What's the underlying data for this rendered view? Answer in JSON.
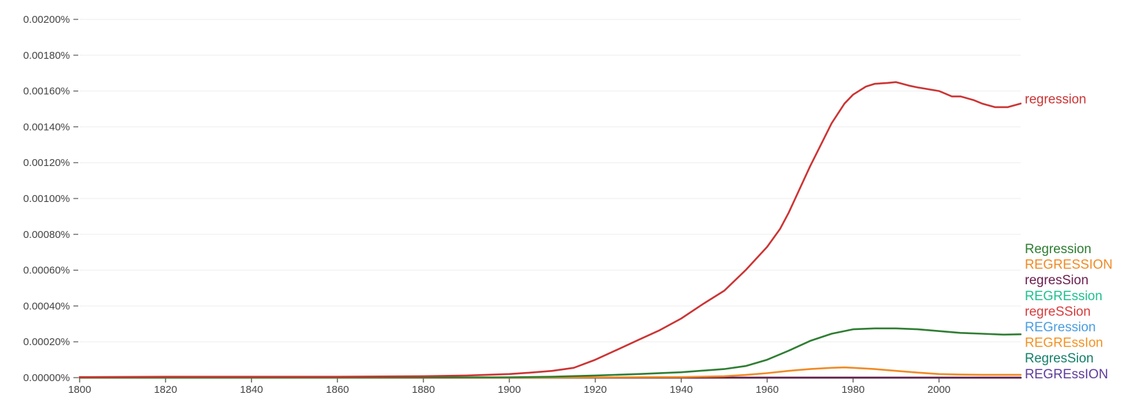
{
  "chart_data": {
    "type": "line",
    "title": "",
    "xlabel": "",
    "ylabel": "",
    "xlim": [
      1800,
      2019
    ],
    "ylim": [
      0,
      0.002
    ],
    "y_ticks": [
      {
        "value": 0.0,
        "label": "0.00000%"
      },
      {
        "value": 0.0002,
        "label": "0.00020%"
      },
      {
        "value": 0.0004,
        "label": "0.00040%"
      },
      {
        "value": 0.0006,
        "label": "0.00060%"
      },
      {
        "value": 0.0008,
        "label": "0.00080%"
      },
      {
        "value": 0.001,
        "label": "0.00100%"
      },
      {
        "value": 0.0012,
        "label": "0.00120%"
      },
      {
        "value": 0.0014,
        "label": "0.00140%"
      },
      {
        "value": 0.0016,
        "label": "0.00160%"
      },
      {
        "value": 0.0018,
        "label": "0.00180%"
      },
      {
        "value": 0.002,
        "label": "0.00200%"
      }
    ],
    "x_ticks": [
      {
        "value": 1800,
        "label": "1800"
      },
      {
        "value": 1820,
        "label": "1820"
      },
      {
        "value": 1840,
        "label": "1840"
      },
      {
        "value": 1860,
        "label": "1860"
      },
      {
        "value": 1880,
        "label": "1880"
      },
      {
        "value": 1900,
        "label": "1900"
      },
      {
        "value": 1920,
        "label": "1920"
      },
      {
        "value": 1940,
        "label": "1940"
      },
      {
        "value": 1960,
        "label": "1960"
      },
      {
        "value": 1980,
        "label": "1980"
      },
      {
        "value": 2000,
        "label": "2000"
      }
    ],
    "grid": true,
    "legend": "right, labels at line ends",
    "series": [
      {
        "name": "regression",
        "color": "#cc3333",
        "x": [
          1800,
          1820,
          1840,
          1860,
          1880,
          1890,
          1900,
          1905,
          1910,
          1915,
          1920,
          1925,
          1930,
          1935,
          1940,
          1945,
          1950,
          1955,
          1960,
          1963,
          1965,
          1970,
          1975,
          1978,
          1980,
          1983,
          1985,
          1988,
          1990,
          1993,
          1995,
          2000,
          2003,
          2005,
          2008,
          2010,
          2013,
          2016,
          2019
        ],
        "values": [
          3e-06,
          5e-06,
          5e-06,
          5e-06,
          8e-06,
          1.2e-05,
          2e-05,
          2.8e-05,
          3.8e-05,
          5.5e-05,
          0.0001,
          0.000155,
          0.00021,
          0.000265,
          0.00033,
          0.00041,
          0.000485,
          0.0006,
          0.00073,
          0.00083,
          0.00092,
          0.00118,
          0.00142,
          0.00153,
          0.00158,
          0.001625,
          0.00164,
          0.001645,
          0.00165,
          0.00163,
          0.00162,
          0.0016,
          0.00157,
          0.00157,
          0.00155,
          0.00153,
          0.00151,
          0.00151,
          0.00153
        ]
      },
      {
        "name": "Regression",
        "color": "#2e7d32",
        "x": [
          1800,
          1880,
          1900,
          1910,
          1920,
          1930,
          1940,
          1950,
          1955,
          1960,
          1965,
          1970,
          1975,
          1980,
          1985,
          1990,
          1995,
          2000,
          2005,
          2010,
          2015,
          2019
        ],
        "values": [
          0.0,
          1e-06,
          2e-06,
          5e-06,
          1.2e-05,
          2e-05,
          3e-05,
          4.8e-05,
          6.5e-05,
          0.0001,
          0.00015,
          0.000205,
          0.000245,
          0.00027,
          0.000275,
          0.000275,
          0.00027,
          0.00026,
          0.00025,
          0.000245,
          0.00024,
          0.000242
        ]
      },
      {
        "name": "REGRESSION",
        "color": "#f08a24",
        "x": [
          1800,
          1900,
          1940,
          1950,
          1955,
          1960,
          1965,
          1970,
          1975,
          1978,
          1980,
          1985,
          1990,
          1995,
          2000,
          2005,
          2010,
          2019
        ],
        "values": [
          0.0,
          0.0,
          3e-06,
          8e-06,
          1.5e-05,
          2.5e-05,
          3.8e-05,
          4.8e-05,
          5.5e-05,
          5.7e-05,
          5.5e-05,
          4.8e-05,
          3.8e-05,
          2.8e-05,
          2e-05,
          1.7e-05,
          1.6e-05,
          1.6e-05
        ]
      },
      {
        "name": "regresSion",
        "color": "#6a1b4d",
        "x": [
          1800,
          2019
        ],
        "values": [
          0.0,
          0.0
        ]
      },
      {
        "name": "REGREssion",
        "color": "#1fbf8f",
        "x": [
          1800,
          2019
        ],
        "values": [
          0.0,
          0.0
        ]
      },
      {
        "name": "regreSSion",
        "color": "#d63c3c",
        "x": [
          1800,
          2019
        ],
        "values": [
          0.0,
          0.0
        ]
      },
      {
        "name": "REGression",
        "color": "#4a9de0",
        "x": [
          1800,
          2019
        ],
        "values": [
          0.0,
          0.0
        ]
      },
      {
        "name": "REGREssIon",
        "color": "#f29224",
        "x": [
          1800,
          2019
        ],
        "values": [
          0.0,
          0.0
        ]
      },
      {
        "name": "RegresSion",
        "color": "#14806b",
        "x": [
          1800,
          2019
        ],
        "values": [
          0.0,
          0.0
        ]
      },
      {
        "name": "REGREssION",
        "color": "#5e3c99",
        "x": [
          1800,
          2019
        ],
        "values": [
          0.0,
          0.0
        ]
      }
    ]
  }
}
